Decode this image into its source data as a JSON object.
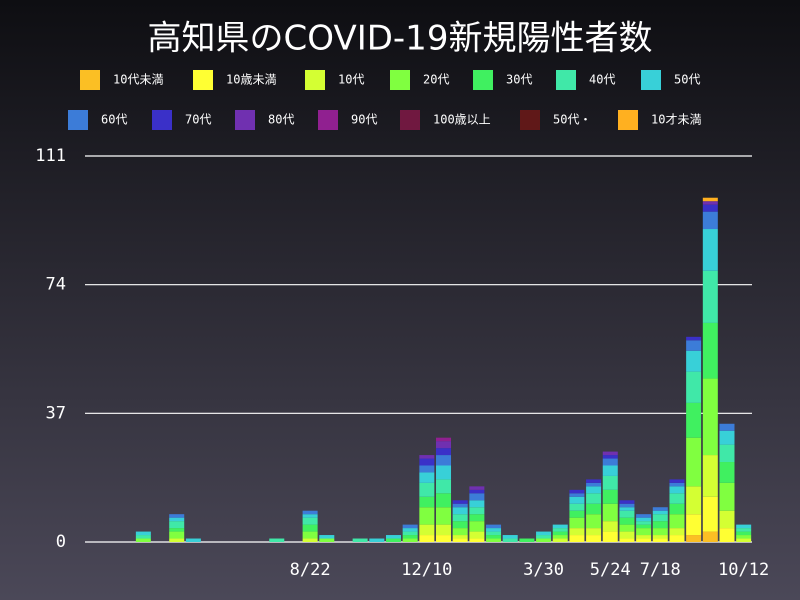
{
  "chart_data": {
    "type": "stacked_bar",
    "title": "高知県のCOVID-19新規陽性者数",
    "categories": [
      null,
      null,
      null,
      null,
      null,
      null,
      null,
      null,
      null,
      null,
      null,
      null,
      null,
      "8/22",
      null,
      null,
      null,
      null,
      null,
      null,
      "12/10",
      null,
      null,
      null,
      null,
      null,
      null,
      "3/30",
      null,
      null,
      null,
      "5/24",
      null,
      null,
      "7/18",
      null,
      null,
      null,
      null,
      "10/12"
    ],
    "ylim": [
      0,
      111
    ],
    "yticks": [
      0,
      37,
      74,
      111
    ],
    "grid": true,
    "series": [
      {
        "name": "10代未満",
        "color": "#fbbf24",
        "values": [
          0,
          0,
          0,
          0,
          0,
          0,
          0,
          0,
          0,
          0,
          0,
          0,
          0,
          0,
          0,
          0,
          0,
          0,
          0,
          0,
          0,
          0,
          0,
          0,
          0,
          0,
          0,
          0,
          0,
          0,
          0,
          0,
          0,
          0,
          0,
          0,
          2,
          3,
          0,
          0
        ]
      },
      {
        "name": "10歳未満",
        "color": "#ffff33",
        "values": [
          0,
          0,
          0,
          0,
          0,
          0,
          0,
          0,
          0,
          0,
          0,
          0,
          0,
          0,
          0,
          0,
          0,
          0,
          0,
          0,
          2,
          2,
          1,
          1,
          0,
          0,
          0,
          0,
          0,
          2,
          2,
          3,
          1,
          1,
          1,
          2,
          6,
          10,
          4,
          0
        ]
      },
      {
        "name": "10代",
        "color": "#d4ff33",
        "values": [
          0,
          0,
          0,
          0,
          0,
          1,
          0,
          0,
          0,
          0,
          0,
          0,
          0,
          1,
          0,
          0,
          0,
          0,
          0,
          0,
          3,
          3,
          1,
          2,
          0,
          0,
          0,
          0,
          1,
          2,
          2,
          3,
          2,
          1,
          1,
          2,
          8,
          12,
          5,
          1
        ]
      },
      {
        "name": "20代",
        "color": "#80ff40",
        "values": [
          0,
          0,
          0,
          1,
          0,
          2,
          0,
          0,
          0,
          0,
          0,
          0,
          0,
          2,
          1,
          0,
          0,
          0,
          0,
          1,
          5,
          5,
          2,
          3,
          1,
          0,
          0,
          1,
          1,
          3,
          4,
          5,
          2,
          2,
          2,
          4,
          14,
          22,
          8,
          1
        ]
      },
      {
        "name": "30代",
        "color": "#40f060",
        "values": [
          0,
          0,
          0,
          0,
          0,
          1,
          0,
          0,
          0,
          0,
          0,
          0,
          0,
          2,
          0,
          0,
          0,
          0,
          1,
          1,
          3,
          4,
          2,
          2,
          1,
          0,
          1,
          0,
          1,
          2,
          3,
          4,
          2,
          1,
          2,
          3,
          10,
          16,
          6,
          1
        ]
      },
      {
        "name": "40代",
        "color": "#40e8a8",
        "values": [
          0,
          0,
          0,
          1,
          0,
          2,
          0,
          0,
          0,
          0,
          0,
          1,
          0,
          2,
          0,
          0,
          1,
          0,
          0,
          1,
          4,
          4,
          2,
          2,
          1,
          1,
          0,
          1,
          1,
          2,
          3,
          4,
          2,
          1,
          2,
          3,
          9,
          15,
          5,
          1
        ]
      },
      {
        "name": "50代",
        "color": "#38d0d8",
        "values": [
          0,
          0,
          0,
          1,
          0,
          1,
          1,
          0,
          0,
          0,
          0,
          0,
          0,
          1,
          1,
          0,
          0,
          1,
          1,
          1,
          3,
          4,
          2,
          2,
          1,
          1,
          0,
          1,
          1,
          2,
          2,
          3,
          1,
          1,
          1,
          2,
          6,
          12,
          4,
          1
        ]
      },
      {
        "name": "60代",
        "color": "#3c7cd8",
        "values": [
          0,
          0,
          0,
          0,
          0,
          1,
          0,
          0,
          0,
          0,
          0,
          0,
          0,
          1,
          0,
          0,
          0,
          0,
          0,
          1,
          2,
          3,
          1,
          2,
          1,
          0,
          0,
          0,
          0,
          1,
          1,
          2,
          1,
          1,
          1,
          1,
          3,
          5,
          2,
          0
        ]
      },
      {
        "name": "70代",
        "color": "#3a30c8",
        "values": [
          0,
          0,
          0,
          0,
          0,
          0,
          0,
          0,
          0,
          0,
          0,
          0,
          0,
          0,
          0,
          0,
          0,
          0,
          0,
          0,
          2,
          2,
          1,
          1,
          0,
          0,
          0,
          0,
          0,
          1,
          1,
          1,
          1,
          0,
          0,
          1,
          1,
          2,
          0,
          0
        ]
      },
      {
        "name": "80代",
        "color": "#7030b0",
        "values": [
          0,
          0,
          0,
          0,
          0,
          0,
          0,
          0,
          0,
          0,
          0,
          0,
          0,
          0,
          0,
          0,
          0,
          0,
          0,
          0,
          1,
          2,
          0,
          1,
          0,
          0,
          0,
          0,
          0,
          0,
          0,
          1,
          0,
          0,
          0,
          0,
          0,
          1,
          0,
          0
        ]
      },
      {
        "name": "90代",
        "color": "#902090",
        "values": [
          0,
          0,
          0,
          0,
          0,
          0,
          0,
          0,
          0,
          0,
          0,
          0,
          0,
          0,
          0,
          0,
          0,
          0,
          0,
          0,
          0,
          1,
          0,
          0,
          0,
          0,
          0,
          0,
          0,
          0,
          0,
          0,
          0,
          0,
          0,
          0,
          0,
          0,
          0,
          0
        ]
      },
      {
        "name": "100歳以上",
        "color": "#701840",
        "values": [
          0,
          0,
          0,
          0,
          0,
          0,
          0,
          0,
          0,
          0,
          0,
          0,
          0,
          0,
          0,
          0,
          0,
          0,
          0,
          0,
          0,
          0,
          0,
          0,
          0,
          0,
          0,
          0,
          0,
          0,
          0,
          0,
          0,
          0,
          0,
          0,
          0,
          0,
          0,
          0
        ]
      },
      {
        "name": "50代・",
        "color": "#601818",
        "values": [
          0,
          0,
          0,
          0,
          0,
          0,
          0,
          0,
          0,
          0,
          0,
          0,
          0,
          0,
          0,
          0,
          0,
          0,
          0,
          0,
          0,
          0,
          0,
          0,
          0,
          0,
          0,
          0,
          0,
          0,
          0,
          0,
          0,
          0,
          0,
          0,
          0,
          0,
          0,
          0
        ]
      },
      {
        "name": "10才未満",
        "color": "#ffb020",
        "values": [
          0,
          0,
          0,
          0,
          0,
          0,
          0,
          0,
          0,
          0,
          0,
          0,
          0,
          0,
          0,
          0,
          0,
          0,
          0,
          0,
          0,
          0,
          0,
          0,
          0,
          0,
          0,
          0,
          0,
          0,
          0,
          0,
          0,
          0,
          0,
          0,
          0,
          1,
          0,
          0
        ]
      }
    ]
  }
}
